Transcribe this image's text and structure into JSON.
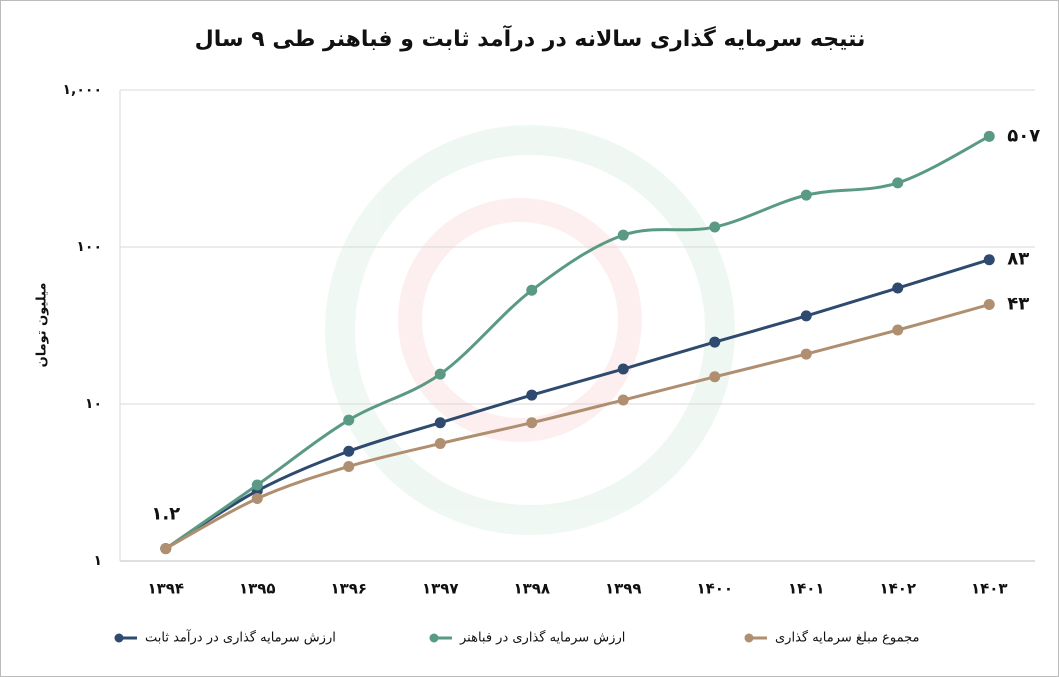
{
  "chart_data": {
    "type": "line",
    "title": "نتیجه سرمایه گذاری سالانه در درآمد ثابت و فباهنر طی ۹ سال",
    "y_label": "میلیون تومان",
    "categories": [
      "۱۳۹۴",
      "۱۳۹۵",
      "۱۳۹۶",
      "۱۳۹۷",
      "۱۳۹۸",
      "۱۳۹۹",
      "۱۴۰۰",
      "۱۴۰۱",
      "۱۴۰۲",
      "۱۴۰۳"
    ],
    "series": [
      {
        "name": "ارزش سرمایه گذاری در درآمد ثابت",
        "color": "#2e4a6e",
        "values": [
          1.2,
          2.8,
          5.0,
          7.6,
          11.4,
          16.7,
          24.8,
          36.4,
          54.8,
          83
        ],
        "value_labels": [
          null,
          null,
          null,
          null,
          null,
          null,
          null,
          null,
          null,
          "۸۳"
        ]
      },
      {
        "name": "ارزش سرمایه گذاری در فباهنر",
        "color": "#5a9a84",
        "values": [
          1.2,
          3.05,
          7.9,
          15.5,
          53,
          119,
          134,
          214,
          256,
          507
        ],
        "value_labels": [
          "۱.۲",
          null,
          null,
          null,
          null,
          null,
          null,
          null,
          null,
          "۵۰۷"
        ]
      },
      {
        "name": "مجموع مبلغ سرمایه گذاری",
        "color": "#b08e70",
        "values": [
          1.2,
          2.5,
          4.0,
          5.6,
          7.6,
          10.6,
          14.9,
          20.8,
          29.6,
          43
        ],
        "value_labels": [
          null,
          null,
          null,
          null,
          null,
          null,
          null,
          null,
          null,
          "۴۳"
        ]
      }
    ],
    "log_scale": true,
    "grid": true,
    "ylim": [
      1,
      1000
    ],
    "yticks": [
      {
        "value": 1,
        "label": "۱"
      },
      {
        "value": 10,
        "label": "۱۰"
      },
      {
        "value": 100,
        "label": "۱۰۰"
      },
      {
        "value": 1000,
        "label": "۱,۰۰۰"
      }
    ],
    "legend": "bottom"
  }
}
